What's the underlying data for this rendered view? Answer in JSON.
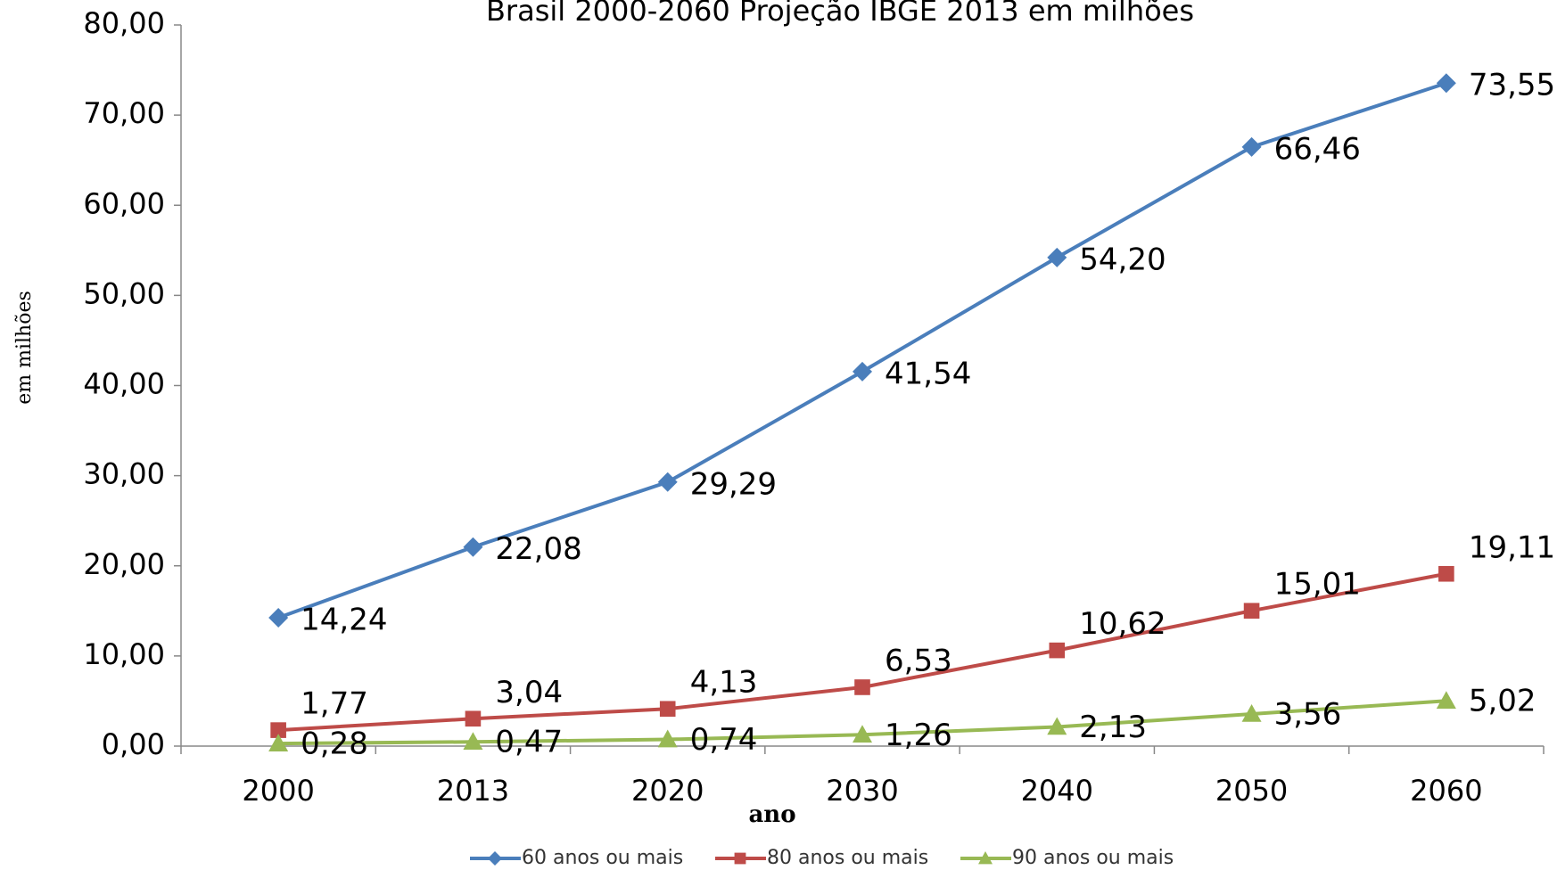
{
  "chart_data": {
    "type": "line",
    "title": "Brasil 2000-2060 Projeção IBGE 2013 em milhões",
    "x_label": "ano",
    "y_label": "em milhões",
    "categories": [
      "2000",
      "2013",
      "2020",
      "2030",
      "2040",
      "2050",
      "2060"
    ],
    "ylim": [
      0,
      80
    ],
    "yticks": [
      {
        "value": 0,
        "label": "0,00"
      },
      {
        "value": 10,
        "label": "10,00"
      },
      {
        "value": 20,
        "label": "20,00"
      },
      {
        "value": 30,
        "label": "30,00"
      },
      {
        "value": 40,
        "label": "40,00"
      },
      {
        "value": 50,
        "label": "50,00"
      },
      {
        "value": 60,
        "label": "60,00"
      },
      {
        "value": 70,
        "label": "70,00"
      },
      {
        "value": 80,
        "label": "80,00"
      }
    ],
    "grid": false,
    "series": [
      {
        "name": "60 anos ou mais",
        "color": "#4a7ebb",
        "marker": "diamond",
        "values": [
          14.24,
          22.08,
          29.29,
          41.54,
          54.2,
          66.46,
          73.55
        ],
        "value_labels": [
          "14,24",
          "22,08",
          "29,29",
          "41,54",
          "54,20",
          "66,46",
          "73,55"
        ]
      },
      {
        "name": "80 anos ou mais",
        "color": "#be4b48",
        "marker": "square",
        "values": [
          1.77,
          3.04,
          4.13,
          6.53,
          10.62,
          15.01,
          19.11
        ],
        "value_labels": [
          "1,77",
          "3,04",
          "4,13",
          "6,53",
          "10,62",
          "15,01",
          "19,11"
        ]
      },
      {
        "name": "90 anos ou mais",
        "color": "#98b954",
        "marker": "triangle",
        "values": [
          0.28,
          0.47,
          0.74,
          1.26,
          2.13,
          3.56,
          5.02
        ],
        "value_labels": [
          "0,28",
          "0,47",
          "0,74",
          "1,26",
          "2,13",
          "3,56",
          "5,02"
        ]
      }
    ]
  }
}
